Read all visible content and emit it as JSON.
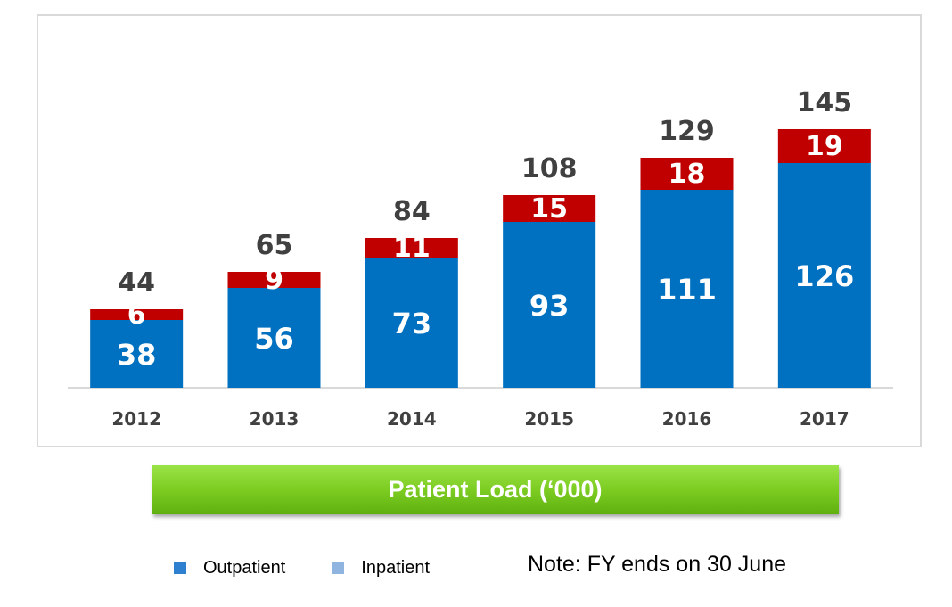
{
  "chart_data": {
    "type": "bar",
    "stacked": true,
    "categories": [
      "2012",
      "2013",
      "2014",
      "2015",
      "2016",
      "2017"
    ],
    "series": [
      {
        "name": "Outpatient",
        "values": [
          38,
          56,
          73,
          93,
          111,
          126
        ],
        "color": "#0070c0"
      },
      {
        "name": "Inpatient",
        "values": [
          6,
          9,
          11,
          15,
          18,
          19
        ],
        "color": "#c00000"
      }
    ],
    "totals": [
      44,
      65,
      84,
      108,
      129,
      145
    ],
    "title": "Patient Load (‘000)",
    "xlabel": "",
    "ylabel": "",
    "ylim": [
      0,
      155
    ],
    "grid": false,
    "legend_position": "bottom"
  },
  "legend": {
    "items": [
      {
        "label": "Outpatient",
        "color": "#2f7fd1"
      },
      {
        "label": "Inpatient",
        "color": "#8fb4e0"
      }
    ]
  },
  "note": "Note: FY ends on 30 June"
}
